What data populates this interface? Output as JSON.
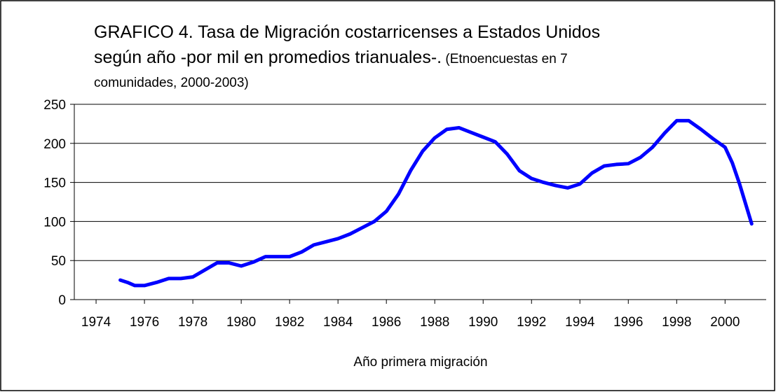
{
  "chart_data": {
    "type": "line",
    "title": [
      "GRAFICO 4. Tasa de Migración costarricenses a Estados Unidos",
      "según año -por mil en promedios trianuales-."
    ],
    "subtitle": [
      "(Etnoencuestas en 7",
      "comunidades, 2000-2003)"
    ],
    "x_label": "Año primera migración",
    "xlim": [
      1973.1,
      2001.7
    ],
    "xticks": [
      1974,
      1976,
      1978,
      1980,
      1982,
      1984,
      1986,
      1988,
      1990,
      1992,
      1994,
      1996,
      1998,
      2000
    ],
    "ylim": [
      0,
      250
    ],
    "yticks": [
      0,
      50,
      100,
      150,
      200,
      250
    ],
    "grid": true,
    "x": [
      1975,
      1975.3,
      1975.6,
      1976,
      1976.5,
      1977,
      1977.5,
      1978,
      1978.5,
      1979,
      1979.5,
      1980,
      1980.5,
      1981,
      1981.5,
      1982,
      1982.5,
      1983,
      1983.5,
      1984,
      1984.5,
      1985,
      1985.5,
      1986,
      1986.5,
      1987,
      1987.5,
      1988,
      1988.5,
      1989,
      1989.5,
      1990,
      1990.5,
      1991,
      1991.5,
      1992,
      1992.5,
      1993,
      1993.5,
      1994,
      1994.5,
      1995,
      1995.5,
      1996,
      1996.5,
      1997,
      1997.5,
      1998,
      1998.5,
      1999,
      1999.5,
      2000,
      2000.3,
      2000.6,
      2001.1
    ],
    "series": [
      {
        "name": "Tasa",
        "color": "#0000ff",
        "values": [
          25,
          22,
          18,
          18,
          22,
          27,
          27,
          29,
          38,
          47,
          47,
          43,
          48,
          55,
          55,
          55,
          61,
          70,
          74,
          78,
          84,
          92,
          100,
          113,
          135,
          165,
          190,
          207,
          218,
          220,
          214,
          208,
          202,
          186,
          165,
          155,
          150,
          146,
          143,
          148,
          162,
          171,
          173,
          174,
          182,
          195,
          213,
          229,
          229,
          218,
          206,
          195,
          175,
          148,
          97
        ]
      }
    ]
  }
}
